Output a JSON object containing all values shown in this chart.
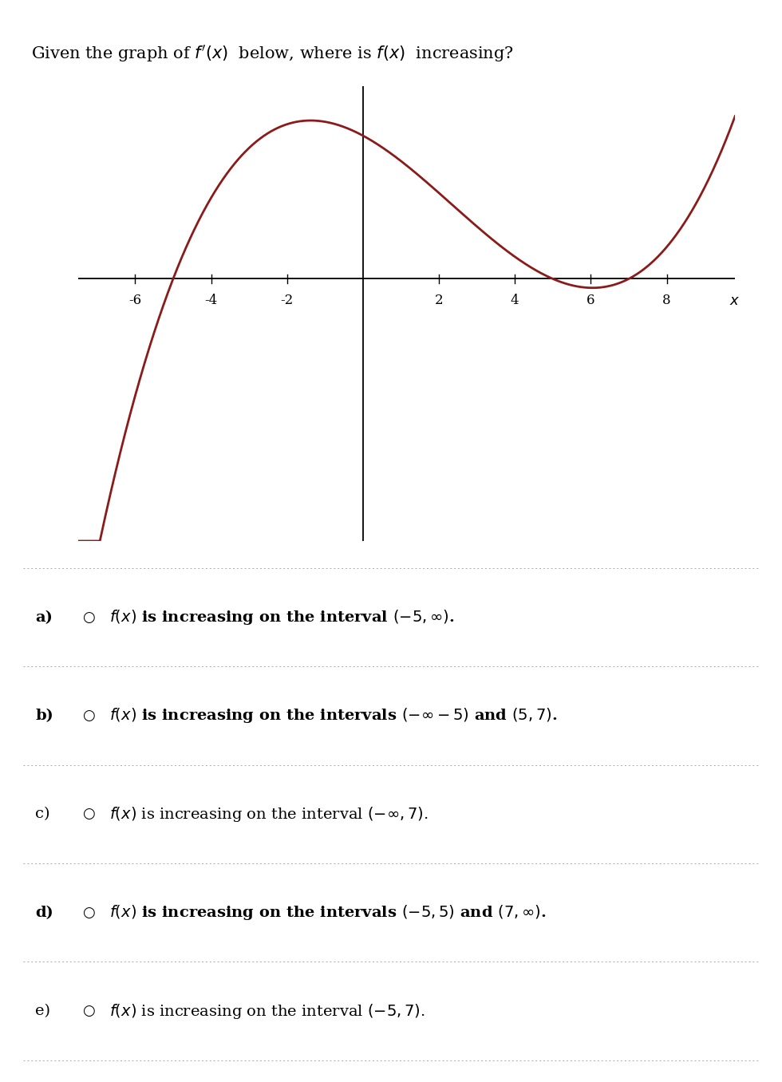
{
  "curve_color": "#8B1A1A",
  "curve_linewidth": 2.0,
  "x_ticks": [
    -6,
    -4,
    -2,
    2,
    4,
    6,
    8
  ],
  "x_min": -7.5,
  "x_max": 9.8,
  "y_min": -7.5,
  "y_max": 5.5,
  "background_color": "#ffffff",
  "question": "Given the graph of $f'(x)$  below, where is $f(x)$  increasing?",
  "answers": [
    {
      "label": "a)",
      "bold": true,
      "text": "$f(x)$ is increasing on the interval $(-5, \\infty)$."
    },
    {
      "label": "b)",
      "bold": true,
      "text": "$f(x)$ is increasing on the intervals $(-\\infty - 5)$ and $(5, 7)$."
    },
    {
      "label": "c)",
      "bold": false,
      "text": "$f(x)$ is increasing on the interval $(-\\infty, 7)$."
    },
    {
      "label": "d)",
      "bold": true,
      "text": "$f(x)$ is increasing on the intervals $(-5, 5)$ and $(7, \\infty)$."
    },
    {
      "label": "e)",
      "bold": false,
      "text": "$f(x)$ is increasing on the interval $(-5, 7)$."
    }
  ]
}
